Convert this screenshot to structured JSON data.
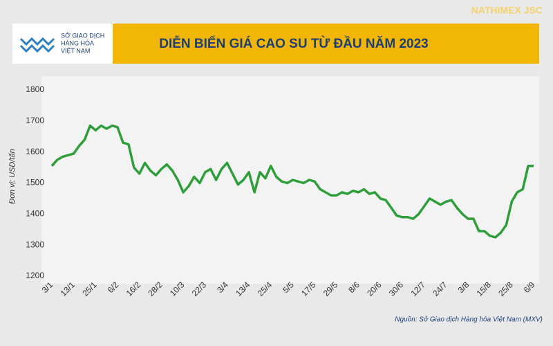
{
  "header": {
    "logo_lines": [
      "SỞ GIAO DỊCH",
      "HÀNG HÓA",
      "VIỆT NAM"
    ],
    "watermark": "NATHIMEX JSC"
  },
  "chart_data": {
    "type": "line",
    "title": "DIỄN BIẾN GIÁ CAO SU TỪ ĐẦU NĂM 2023",
    "y_label": "Đơn vị: USD/tấn",
    "source": "Nguồn: Sở Giao dịch Hàng hóa Việt Nam (MXV)",
    "categories": [
      "3/1",
      null,
      null,
      null,
      "13/1",
      null,
      null,
      null,
      "25/1",
      null,
      null,
      null,
      "6/2",
      null,
      null,
      null,
      "16/2",
      null,
      null,
      null,
      "28/2",
      null,
      null,
      null,
      "10/3",
      null,
      null,
      null,
      "22/3",
      null,
      null,
      null,
      "3/4",
      null,
      null,
      null,
      "13/4",
      null,
      null,
      null,
      "25/4",
      null,
      null,
      null,
      "5/5",
      null,
      null,
      null,
      "17/5",
      null,
      null,
      null,
      "29/5",
      null,
      null,
      null,
      "8/6",
      null,
      null,
      null,
      "20/6",
      null,
      null,
      null,
      "30/6",
      null,
      null,
      null,
      "12/7",
      null,
      null,
      null,
      "24/7",
      null,
      null,
      null,
      "3/8",
      null,
      null,
      null,
      "15/8",
      null,
      null,
      null,
      "25/8",
      null,
      null,
      null,
      "6/9"
    ],
    "series": [
      {
        "color": "#2e9e3a",
        "values": [
          1555,
          1575,
          1585,
          1590,
          1595,
          1620,
          1640,
          1685,
          1670,
          1685,
          1675,
          1685,
          1680,
          1630,
          1625,
          1550,
          1530,
          1565,
          1540,
          1525,
          1545,
          1560,
          1540,
          1510,
          1470,
          1490,
          1520,
          1500,
          1535,
          1545,
          1510,
          1545,
          1565,
          1530,
          1495,
          1510,
          1535,
          1470,
          1535,
          1515,
          1555,
          1520,
          1505,
          1500,
          1510,
          1505,
          1500,
          1510,
          1505,
          1480,
          1470,
          1460,
          1460,
          1470,
          1465,
          1475,
          1470,
          1480,
          1465,
          1470,
          1450,
          1445,
          1420,
          1395,
          1390,
          1390,
          1385,
          1400,
          1425,
          1450,
          1440,
          1430,
          1440,
          1445,
          1420,
          1400,
          1385,
          1385,
          1345,
          1345,
          1330,
          1325,
          1340,
          1365,
          1440,
          1470,
          1480,
          1555,
          1555
        ]
      }
    ],
    "ylim": [
      1200,
      1800
    ],
    "yticks": [
      1200,
      1300,
      1400,
      1500,
      1600,
      1700,
      1800
    ],
    "grid": false
  }
}
